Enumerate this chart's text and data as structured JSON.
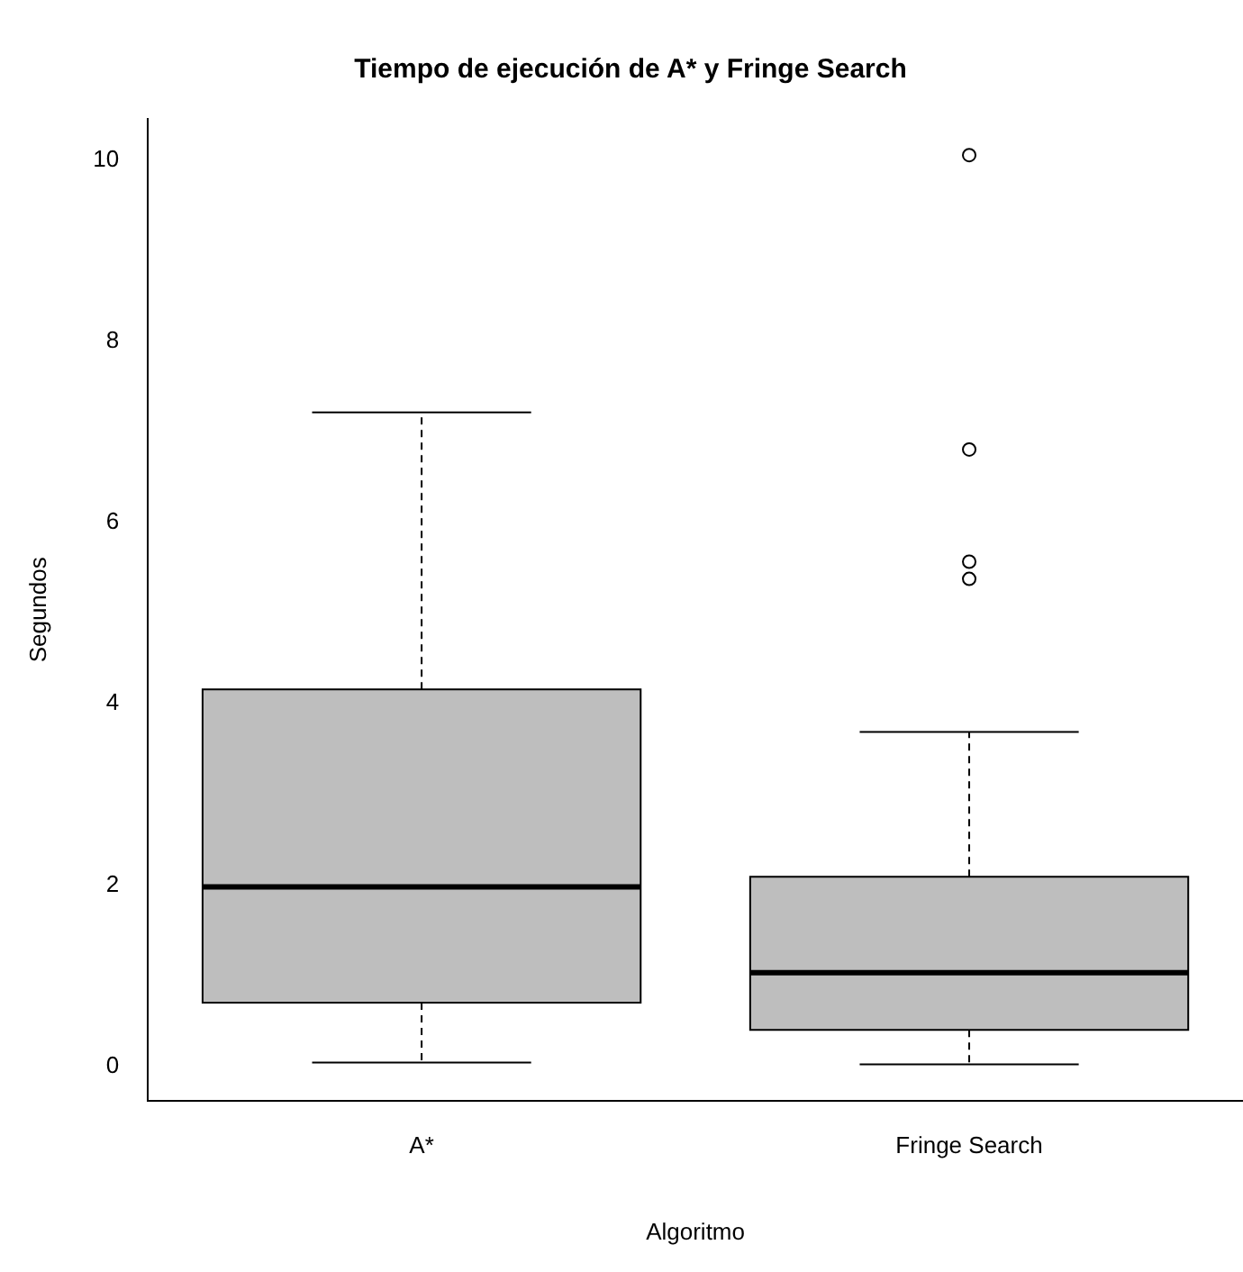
{
  "chart_data": {
    "type": "box",
    "title": "Tiempo de ejecución de A* y Fringe Search",
    "xlabel": "Algoritmo",
    "ylabel": "Segundos",
    "categories": [
      "A*",
      "Fringe Search"
    ],
    "series": [
      {
        "color": "#bebebe",
        "boxes": [
          {
            "low": 0.04,
            "q1": 0.7,
            "median": 1.98,
            "q3": 4.16,
            "high": 7.22
          },
          {
            "low": 0.02,
            "q1": 0.4,
            "median": 1.03,
            "q3": 2.09,
            "high": 3.69,
            "outliers": [
              10.06,
              6.81,
              5.57,
              5.38
            ]
          }
        ]
      }
    ],
    "ylim": [
      -0.38,
      10.46
    ],
    "yticks": [
      0,
      2,
      4,
      6,
      8,
      10
    ],
    "grid": false,
    "legend": false
  }
}
